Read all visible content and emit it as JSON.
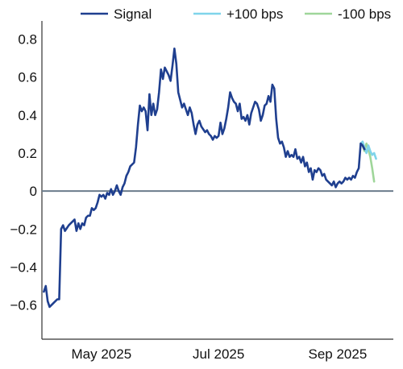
{
  "chart_data": {
    "type": "line",
    "title": "",
    "xlabel": "",
    "ylabel": "",
    "x_ticks": [
      {
        "date": "2025-05-01",
        "label": "May 2025"
      },
      {
        "date": "2025-07-01",
        "label": "Jul 2025"
      },
      {
        "date": "2025-09-01",
        "label": "Sep 2025"
      }
    ],
    "y_ticks": [
      -0.6,
      -0.4,
      -0.2,
      0,
      0.2,
      0.4,
      0.6,
      0.8
    ],
    "y_tick_labels": [
      "−0.6",
      "−0.4",
      "−0.2",
      "0",
      "0.2",
      "0.4",
      "0.6",
      "0.8"
    ],
    "xlim": [
      "2025-03-31",
      "2025-09-30"
    ],
    "ylim": [
      -0.78,
      0.87
    ],
    "zero_line": true,
    "grid": false,
    "legend_position": "top",
    "series": [
      {
        "name": "Signal",
        "color": "#1f3f8f",
        "points": [
          [
            "2025-04-01",
            -0.53
          ],
          [
            "2025-04-02",
            -0.5
          ],
          [
            "2025-04-03",
            -0.58
          ],
          [
            "2025-04-04",
            -0.61
          ],
          [
            "2025-04-06",
            -0.59
          ],
          [
            "2025-04-08",
            -0.57
          ],
          [
            "2025-04-09",
            -0.57
          ],
          [
            "2025-04-10",
            -0.2
          ],
          [
            "2025-04-11",
            -0.18
          ],
          [
            "2025-04-12",
            -0.21
          ],
          [
            "2025-04-14",
            -0.18
          ],
          [
            "2025-04-15",
            -0.17
          ],
          [
            "2025-04-17",
            -0.15
          ],
          [
            "2025-04-18",
            -0.21
          ],
          [
            "2025-04-19",
            -0.17
          ],
          [
            "2025-04-20",
            -0.2
          ],
          [
            "2025-04-21",
            -0.17
          ],
          [
            "2025-04-22",
            -0.18
          ],
          [
            "2025-04-23",
            -0.14
          ],
          [
            "2025-04-24",
            -0.13
          ],
          [
            "2025-04-25",
            -0.13
          ],
          [
            "2025-04-26",
            -0.09
          ],
          [
            "2025-04-27",
            -0.1
          ],
          [
            "2025-04-28",
            -0.09
          ],
          [
            "2025-04-29",
            -0.06
          ],
          [
            "2025-04-30",
            -0.02
          ],
          [
            "2025-05-01",
            -0.03
          ],
          [
            "2025-05-02",
            -0.02
          ],
          [
            "2025-05-03",
            -0.04
          ],
          [
            "2025-05-04",
            -0.01
          ],
          [
            "2025-05-05",
            -0.02
          ],
          [
            "2025-05-06",
            0.01
          ],
          [
            "2025-05-07",
            -0.02
          ],
          [
            "2025-05-08",
            0.0
          ],
          [
            "2025-05-09",
            0.03
          ],
          [
            "2025-05-10",
            0.0
          ],
          [
            "2025-05-11",
            -0.02
          ],
          [
            "2025-05-12",
            0.02
          ],
          [
            "2025-05-13",
            0.04
          ],
          [
            "2025-05-14",
            0.08
          ],
          [
            "2025-05-15",
            0.1
          ],
          [
            "2025-05-16",
            0.13
          ],
          [
            "2025-05-18",
            0.15
          ],
          [
            "2025-05-19",
            0.23
          ],
          [
            "2025-05-20",
            0.35
          ],
          [
            "2025-05-21",
            0.45
          ],
          [
            "2025-05-22",
            0.42
          ],
          [
            "2025-05-23",
            0.44
          ],
          [
            "2025-05-24",
            0.42
          ],
          [
            "2025-05-25",
            0.32
          ],
          [
            "2025-05-26",
            0.51
          ],
          [
            "2025-05-27",
            0.4
          ],
          [
            "2025-05-28",
            0.46
          ],
          [
            "2025-05-29",
            0.4
          ],
          [
            "2025-05-30",
            0.43
          ],
          [
            "2025-05-31",
            0.52
          ],
          [
            "2025-06-01",
            0.64
          ],
          [
            "2025-06-02",
            0.59
          ],
          [
            "2025-06-03",
            0.65
          ],
          [
            "2025-06-04",
            0.63
          ],
          [
            "2025-06-05",
            0.61
          ],
          [
            "2025-06-06",
            0.58
          ],
          [
            "2025-06-07",
            0.66
          ],
          [
            "2025-06-08",
            0.75
          ],
          [
            "2025-06-09",
            0.67
          ],
          [
            "2025-06-10",
            0.52
          ],
          [
            "2025-06-11",
            0.48
          ],
          [
            "2025-06-12",
            0.44
          ],
          [
            "2025-06-13",
            0.46
          ],
          [
            "2025-06-14",
            0.43
          ],
          [
            "2025-06-15",
            0.4
          ],
          [
            "2025-06-16",
            0.44
          ],
          [
            "2025-06-17",
            0.41
          ],
          [
            "2025-06-18",
            0.35
          ],
          [
            "2025-06-19",
            0.3
          ],
          [
            "2025-06-20",
            0.35
          ],
          [
            "2025-06-21",
            0.37
          ],
          [
            "2025-06-22",
            0.34
          ],
          [
            "2025-06-24",
            0.31
          ],
          [
            "2025-06-25",
            0.32
          ],
          [
            "2025-06-26",
            0.3
          ],
          [
            "2025-06-27",
            0.29
          ],
          [
            "2025-06-28",
            0.27
          ],
          [
            "2025-06-29",
            0.29
          ],
          [
            "2025-06-30",
            0.28
          ],
          [
            "2025-07-01",
            0.29
          ],
          [
            "2025-07-02",
            0.36
          ],
          [
            "2025-07-03",
            0.3
          ],
          [
            "2025-07-04",
            0.33
          ],
          [
            "2025-07-05",
            0.38
          ],
          [
            "2025-07-06",
            0.44
          ],
          [
            "2025-07-07",
            0.52
          ],
          [
            "2025-07-08",
            0.49
          ],
          [
            "2025-07-09",
            0.47
          ],
          [
            "2025-07-10",
            0.46
          ],
          [
            "2025-07-11",
            0.42
          ],
          [
            "2025-07-12",
            0.46
          ],
          [
            "2025-07-13",
            0.38
          ],
          [
            "2025-07-14",
            0.39
          ],
          [
            "2025-07-15",
            0.37
          ],
          [
            "2025-07-16",
            0.4
          ],
          [
            "2025-07-17",
            0.35
          ],
          [
            "2025-07-18",
            0.41
          ],
          [
            "2025-07-19",
            0.44
          ],
          [
            "2025-07-20",
            0.47
          ],
          [
            "2025-07-21",
            0.46
          ],
          [
            "2025-07-22",
            0.43
          ],
          [
            "2025-07-23",
            0.37
          ],
          [
            "2025-07-24",
            0.4
          ],
          [
            "2025-07-25",
            0.45
          ],
          [
            "2025-07-26",
            0.46
          ],
          [
            "2025-07-27",
            0.5
          ],
          [
            "2025-07-28",
            0.47
          ],
          [
            "2025-07-29",
            0.56
          ],
          [
            "2025-07-30",
            0.54
          ],
          [
            "2025-07-31",
            0.38
          ],
          [
            "2025-08-01",
            0.28
          ],
          [
            "2025-08-02",
            0.25
          ],
          [
            "2025-08-03",
            0.26
          ],
          [
            "2025-08-04",
            0.23
          ],
          [
            "2025-08-05",
            0.18
          ],
          [
            "2025-08-06",
            0.21
          ],
          [
            "2025-08-07",
            0.18
          ],
          [
            "2025-08-08",
            0.19
          ],
          [
            "2025-08-09",
            0.18
          ],
          [
            "2025-08-10",
            0.22
          ],
          [
            "2025-08-11",
            0.17
          ],
          [
            "2025-08-12",
            0.18
          ],
          [
            "2025-08-13",
            0.15
          ],
          [
            "2025-08-14",
            0.18
          ],
          [
            "2025-08-15",
            0.13
          ],
          [
            "2025-08-16",
            0.15
          ],
          [
            "2025-08-17",
            0.1
          ],
          [
            "2025-08-18",
            0.12
          ],
          [
            "2025-08-19",
            0.06
          ],
          [
            "2025-08-20",
            0.11
          ],
          [
            "2025-08-21",
            0.1
          ],
          [
            "2025-08-22",
            0.12
          ],
          [
            "2025-08-23",
            0.11
          ],
          [
            "2025-08-24",
            0.08
          ],
          [
            "2025-08-25",
            0.09
          ],
          [
            "2025-08-26",
            0.06
          ],
          [
            "2025-08-27",
            0.05
          ],
          [
            "2025-08-28",
            0.04
          ],
          [
            "2025-08-29",
            0.03
          ],
          [
            "2025-08-30",
            0.05
          ],
          [
            "2025-08-31",
            0.02
          ],
          [
            "2025-09-01",
            0.04
          ],
          [
            "2025-09-02",
            0.05
          ],
          [
            "2025-09-03",
            0.04
          ],
          [
            "2025-09-04",
            0.05
          ],
          [
            "2025-09-05",
            0.07
          ],
          [
            "2025-09-06",
            0.06
          ],
          [
            "2025-09-07",
            0.07
          ],
          [
            "2025-09-08",
            0.06
          ],
          [
            "2025-09-09",
            0.08
          ],
          [
            "2025-09-10",
            0.07
          ],
          [
            "2025-09-11",
            0.1
          ],
          [
            "2025-09-12",
            0.12
          ],
          [
            "2025-09-13",
            0.25
          ],
          [
            "2025-09-14",
            0.24
          ],
          [
            "2025-09-15",
            0.22
          ]
        ]
      },
      {
        "name": "+100 bps",
        "color": "#7fd4ea",
        "points": [
          [
            "2025-09-13",
            0.25
          ],
          [
            "2025-09-14",
            0.26
          ],
          [
            "2025-09-15",
            0.23
          ],
          [
            "2025-09-16",
            0.2
          ],
          [
            "2025-09-17",
            0.24
          ],
          [
            "2025-09-18",
            0.21
          ],
          [
            "2025-09-19",
            0.19
          ],
          [
            "2025-09-20",
            0.2
          ],
          [
            "2025-09-21",
            0.17
          ]
        ]
      },
      {
        "name": "-100 bps",
        "color": "#9fd69a",
        "points": [
          [
            "2025-09-13",
            0.25
          ],
          [
            "2025-09-14",
            0.24
          ],
          [
            "2025-09-15",
            0.21
          ],
          [
            "2025-09-16",
            0.25
          ],
          [
            "2025-09-17",
            0.22
          ],
          [
            "2025-09-18",
            0.18
          ],
          [
            "2025-09-19",
            0.12
          ],
          [
            "2025-09-20",
            0.05
          ]
        ]
      }
    ]
  }
}
